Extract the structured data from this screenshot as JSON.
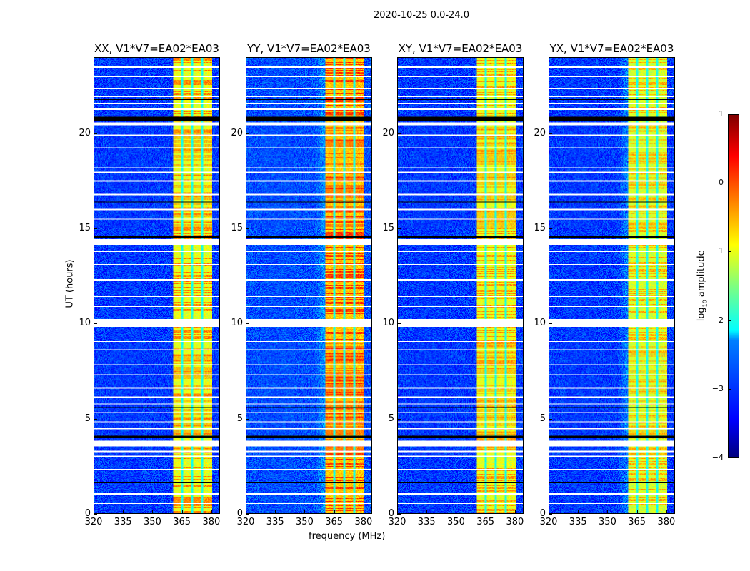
{
  "chart_data": {
    "type": "heatmap",
    "title": "2020-10-25 0.0-24.0",
    "xlabel": "frequency (MHz)",
    "ylabel": "UT (hours)",
    "xlim": [
      320,
      384.4
    ],
    "ylim": [
      0,
      24
    ],
    "xticks": [
      320,
      335,
      350,
      365,
      380
    ],
    "yticks": [
      0,
      5,
      10,
      15,
      20
    ],
    "colormap": "jet",
    "colorbar": {
      "label": "log10 amplitude",
      "label_main": "log",
      "label_sub": "10",
      "label_rest": " amplitude",
      "range": [
        -4,
        1
      ],
      "ticks": [
        1,
        0,
        -1,
        -2,
        -3,
        -4
      ],
      "tick_labels": [
        "1",
        "0",
        "−1",
        "−2",
        "−3",
        "−4"
      ]
    },
    "panels": [
      {
        "title": "XX, V1*V7=EA02*EA03",
        "background_level": -3.1,
        "band_level": -1.0,
        "band_hot_level": -0.3
      },
      {
        "title": "YY, V1*V7=EA02*EA03",
        "background_level": -3.0,
        "band_level": -0.6,
        "band_hot_level": 0.1
      },
      {
        "title": "XY, V1*V7=EA02*EA03",
        "background_level": -3.1,
        "band_level": -1.0,
        "band_hot_level": -0.4
      },
      {
        "title": "YX, V1*V7=EA02*EA03",
        "background_level": -3.1,
        "band_level": -1.1,
        "band_hot_level": -0.5
      }
    ],
    "rfi_band_mhz": [
      360.7,
      380.4
    ],
    "band_gaps_mhz": [
      365.2,
      370.2,
      375.3
    ],
    "flagged_hours_white": [
      [
        0.5,
        0.55
      ],
      [
        1.0,
        1.05
      ],
      [
        2.3,
        2.35
      ],
      [
        2.8,
        2.85
      ],
      [
        3.0,
        3.05
      ],
      [
        3.25,
        3.3
      ],
      [
        3.55,
        3.85
      ],
      [
        4.45,
        4.5
      ],
      [
        4.8,
        4.85
      ],
      [
        5.3,
        5.35
      ],
      [
        5.75,
        5.8
      ],
      [
        6.1,
        6.15
      ],
      [
        6.6,
        6.65
      ],
      [
        7.3,
        7.35
      ],
      [
        7.8,
        7.85
      ],
      [
        8.6,
        8.65
      ],
      [
        9.05,
        9.1
      ],
      [
        9.85,
        10.25
      ],
      [
        10.9,
        10.95
      ],
      [
        11.4,
        11.45
      ],
      [
        12.3,
        12.35
      ],
      [
        13.1,
        13.15
      ],
      [
        13.8,
        13.85
      ],
      [
        14.15,
        14.45
      ],
      [
        14.75,
        14.8
      ],
      [
        15.5,
        15.55
      ],
      [
        16.0,
        16.05
      ],
      [
        16.8,
        16.85
      ],
      [
        17.5,
        17.55
      ],
      [
        17.95,
        18.0
      ],
      [
        18.2,
        18.25
      ],
      [
        19.25,
        19.3
      ],
      [
        19.9,
        19.95
      ],
      [
        20.45,
        20.6
      ],
      [
        21.3,
        21.35
      ],
      [
        21.6,
        21.65
      ],
      [
        21.95,
        22.0
      ],
      [
        22.4,
        22.45
      ],
      [
        23.0,
        23.05
      ],
      [
        23.5,
        23.55
      ]
    ],
    "flagged_hours_black": [
      [
        1.6,
        1.65
      ],
      [
        4.0,
        4.1
      ],
      [
        5.55,
        5.6
      ],
      [
        10.3,
        10.35
      ],
      [
        14.55,
        14.65
      ],
      [
        16.4,
        16.45
      ],
      [
        20.7,
        20.9
      ],
      [
        21.8,
        21.85
      ]
    ]
  }
}
